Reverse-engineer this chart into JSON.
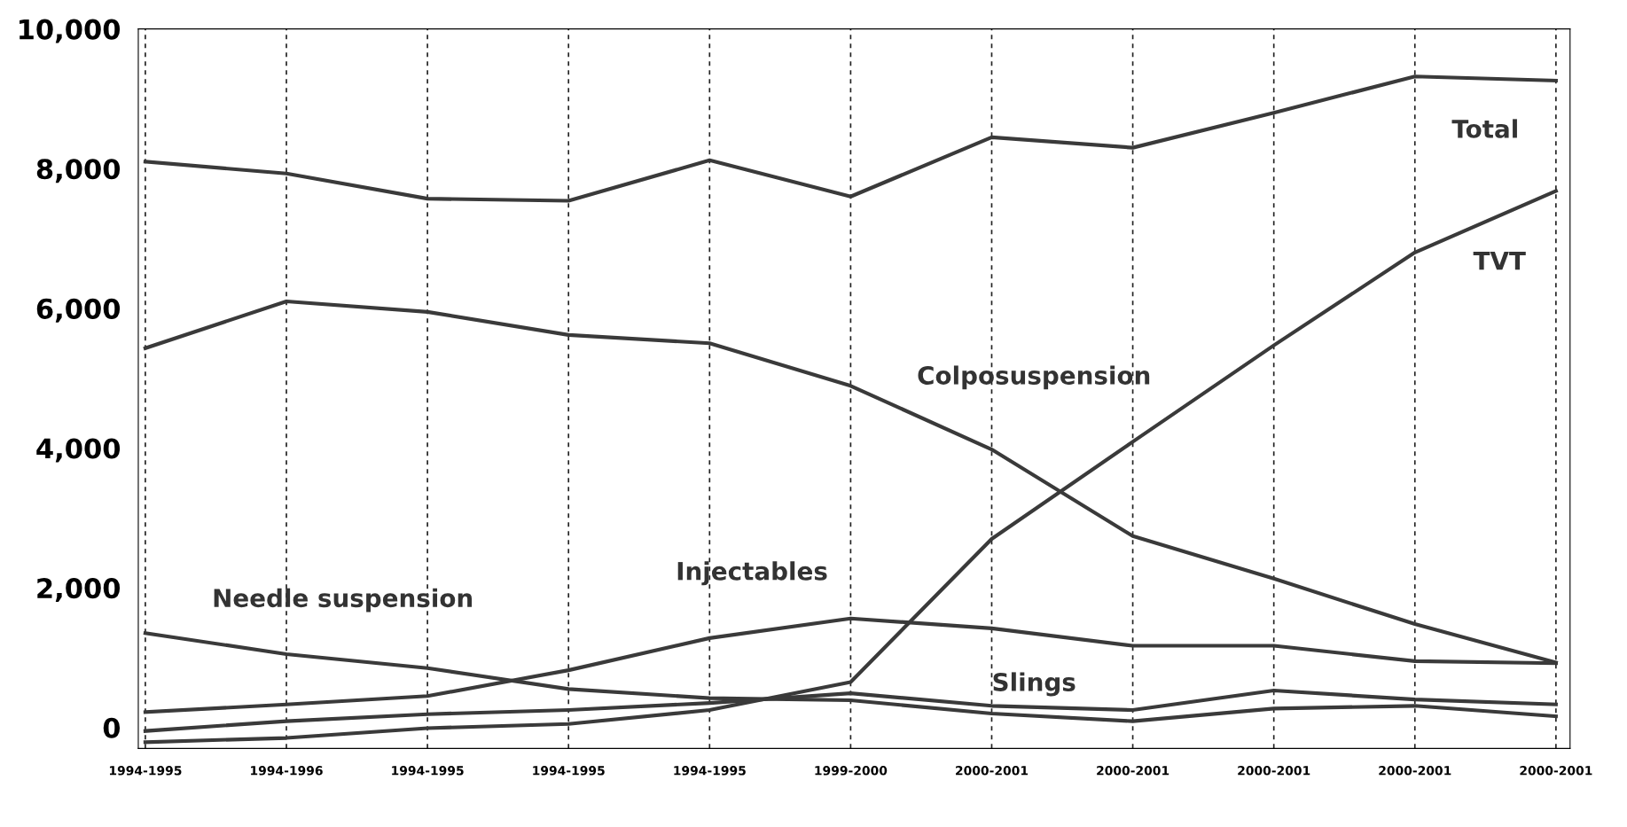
{
  "chart_data": {
    "type": "line",
    "categories": [
      "1994-1995",
      "1994-1996",
      "1994-1995",
      "1994-1995",
      "1994-1995",
      "1999-2000",
      "2000-2001",
      "2000-2001",
      "2000-2001",
      "2000-2001",
      "2000-2001"
    ],
    "series": [
      {
        "name": "Total",
        "color": "#3a3a3a",
        "values": [
          8100,
          7930,
          7570,
          7540,
          8120,
          7600,
          8450,
          8300,
          8800,
          9320,
          9260
        ]
      },
      {
        "name": "TVT",
        "color": "#3a3a3a",
        "values": [
          -210,
          -150,
          -10,
          50,
          250,
          650,
          2700,
          4090,
          5470,
          6800,
          7680
        ]
      },
      {
        "name": "Colposuspension",
        "color": "#3a3a3a",
        "values": [
          5430,
          6100,
          5950,
          5620,
          5500,
          4890,
          3980,
          2740,
          2130,
          1480,
          930
        ]
      },
      {
        "name": "Injectables",
        "color": "#3a3a3a",
        "values": [
          220,
          330,
          450,
          820,
          1280,
          1560,
          1420,
          1170,
          1170,
          950,
          920
        ]
      },
      {
        "name": "Needle suspension",
        "color": "#3a3a3a",
        "values": [
          1350,
          1050,
          850,
          550,
          420,
          390,
          200,
          90,
          270,
          310,
          160
        ]
      },
      {
        "name": "Slings",
        "color": "#3a3a3a",
        "values": [
          -50,
          90,
          190,
          250,
          350,
          490,
          310,
          250,
          530,
          400,
          330
        ]
      }
    ],
    "ylim": [
      -300,
      10000
    ],
    "yticks": [
      0,
      {
        "value": 2000,
        "label": "2,000"
      },
      {
        "value": 4000,
        "label": "4,000"
      },
      {
        "value": 6000,
        "label": "6,000"
      },
      {
        "value": 8000,
        "label": "8,000"
      },
      {
        "value": 10000,
        "label": "10,000"
      }
    ],
    "grid": "x",
    "legend": false,
    "marker": "none",
    "line_style": "solid"
  }
}
